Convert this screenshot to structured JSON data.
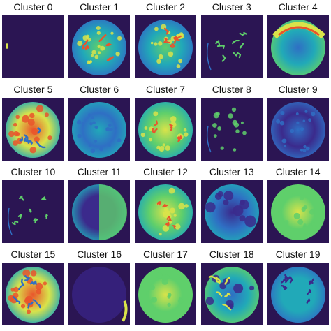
{
  "figure": {
    "panels": [
      {
        "label": "Cluster 0",
        "variant": "speck"
      },
      {
        "label": "Cluster 1",
        "variant": "blotchy-hot"
      },
      {
        "label": "Cluster 2",
        "variant": "blotchy-warm"
      },
      {
        "label": "Cluster 3",
        "variant": "sparse-worm"
      },
      {
        "label": "Cluster 4",
        "variant": "rim-hot"
      },
      {
        "label": "Cluster 5",
        "variant": "hot-core"
      },
      {
        "label": "Cluster 6",
        "variant": "cool-uniform"
      },
      {
        "label": "Cluster 7",
        "variant": "warm-mixed"
      },
      {
        "label": "Cluster 8",
        "variant": "sparse-blobs"
      },
      {
        "label": "Cluster 9",
        "variant": "mottled-dim"
      },
      {
        "label": "Cluster 10",
        "variant": "sparse-worm"
      },
      {
        "label": "Cluster 11",
        "variant": "half-dark"
      },
      {
        "label": "Cluster 12",
        "variant": "warm-mixed"
      },
      {
        "label": "Cluster 13",
        "variant": "dark-core"
      },
      {
        "label": "Cluster 14",
        "variant": "yellow-uniform"
      },
      {
        "label": "Cluster 15",
        "variant": "hot-core"
      },
      {
        "label": "Cluster 16",
        "variant": "faint-edge"
      },
      {
        "label": "Cluster 17",
        "variant": "yellow-uniform"
      },
      {
        "label": "Cluster 18",
        "variant": "dark-core-worm"
      },
      {
        "label": "Cluster 19",
        "variant": "cool-worm"
      }
    ],
    "colormap": {
      "background": "#2b1553",
      "low": "#3b2a8c",
      "mid_low": "#2f6fc4",
      "mid": "#21a9b8",
      "mid_high": "#5fcf6b",
      "high": "#d9e34a",
      "peak": "#e9552c",
      "max": "#c81e1e"
    }
  }
}
